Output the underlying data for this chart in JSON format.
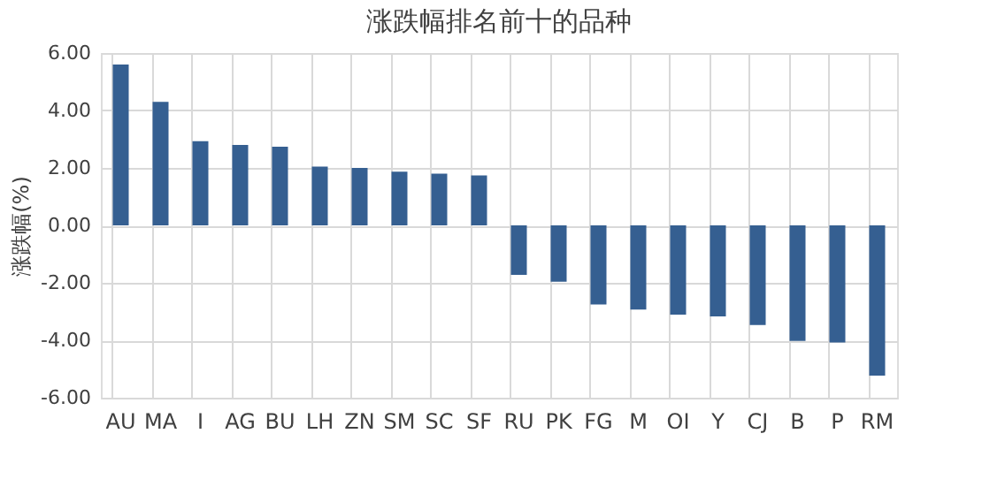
{
  "chart_data": {
    "type": "bar",
    "title": "涨跌幅排名前十的品种",
    "ylabel": "涨跌幅(%)",
    "categories": [
      "AU",
      "MA",
      "I",
      "AG",
      "BU",
      "LH",
      "ZN",
      "SM",
      "SC",
      "SF",
      "RU",
      "PK",
      "FG",
      "M",
      "OI",
      "Y",
      "CJ",
      "B",
      "P",
      "RM"
    ],
    "values": [
      5.6,
      4.3,
      2.93,
      2.8,
      2.74,
      2.05,
      2.0,
      1.87,
      1.8,
      1.74,
      -1.72,
      -1.96,
      -2.75,
      -2.93,
      -3.11,
      -3.17,
      -3.47,
      -4.02,
      -4.08,
      -5.23
    ],
    "color": "#355f91",
    "ylim": [
      -6,
      6
    ],
    "yticks": [
      {
        "value": -6,
        "label": "-6.00"
      },
      {
        "value": -4,
        "label": "-4.00"
      },
      {
        "value": -2,
        "label": "-2.00"
      },
      {
        "value": 0,
        "label": "0.00"
      },
      {
        "value": 2,
        "label": "2.00"
      },
      {
        "value": 4,
        "label": "4.00"
      },
      {
        "value": 6,
        "label": "6.00"
      }
    ],
    "grid": true
  }
}
